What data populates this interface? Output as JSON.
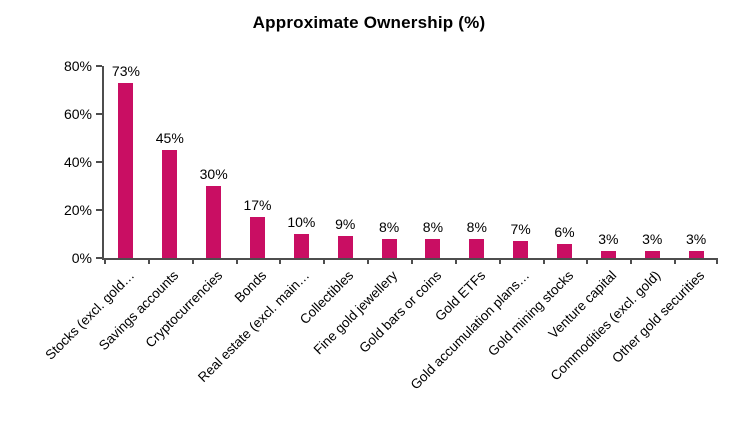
{
  "chart_data": {
    "type": "bar",
    "title": "Approximate Ownership (%)",
    "categories": [
      "Stocks (excl. gold…",
      "Savings accounts",
      "Cryptocurrencies",
      "Bonds",
      "Real estate (excl. main…",
      "Collectibles",
      "Fine gold jewellery",
      "Gold bars or coins",
      "Gold ETFs",
      "Gold accumulation plans…",
      "Gold mining stocks",
      "Venture capital",
      "Commodities (excl. gold)",
      "Other gold securities"
    ],
    "values": [
      73,
      45,
      30,
      17,
      10,
      9,
      8,
      8,
      8,
      7,
      6,
      3,
      3,
      3
    ],
    "value_labels": [
      "73%",
      "45%",
      "30%",
      "17%",
      "10%",
      "9%",
      "8%",
      "8%",
      "8%",
      "7%",
      "6%",
      "3%",
      "3%",
      "3%"
    ],
    "xlabel": "",
    "ylabel": "",
    "ylim": [
      0,
      80
    ],
    "ytick_values": [
      0,
      20,
      40,
      60,
      80
    ],
    "ytick_labels": [
      "0%",
      "20%",
      "40%",
      "60%",
      "80%"
    ],
    "grid": false,
    "legend": null,
    "bar_color": "#C90E63",
    "axis_color": "#4D4D4D",
    "text_color": "#000000"
  }
}
